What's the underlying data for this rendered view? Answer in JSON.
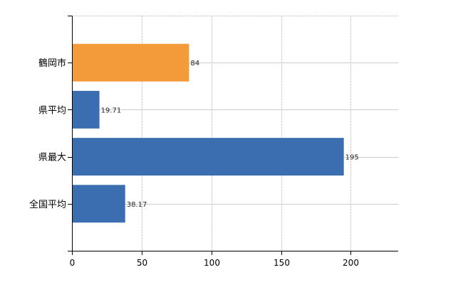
{
  "chart_data": {
    "type": "bar",
    "orientation": "horizontal",
    "categories": [
      "鶴岡市",
      "県平均",
      "県最大",
      "全国平均"
    ],
    "values": [
      84,
      19.71,
      195,
      38.17
    ],
    "value_labels": [
      "84",
      "19.71",
      "195",
      "38.17"
    ],
    "bar_colors": [
      "#f39a3a",
      "#3a6eb0",
      "#3a6eb0",
      "#3a6eb0"
    ],
    "xlim": [
      0,
      234
    ],
    "xticks": [
      0,
      50,
      100,
      150,
      200
    ],
    "xtick_labels": [
      "0",
      "50",
      "100",
      "150",
      "200"
    ],
    "grid": true,
    "title": "",
    "xlabel": "",
    "ylabel": ""
  }
}
